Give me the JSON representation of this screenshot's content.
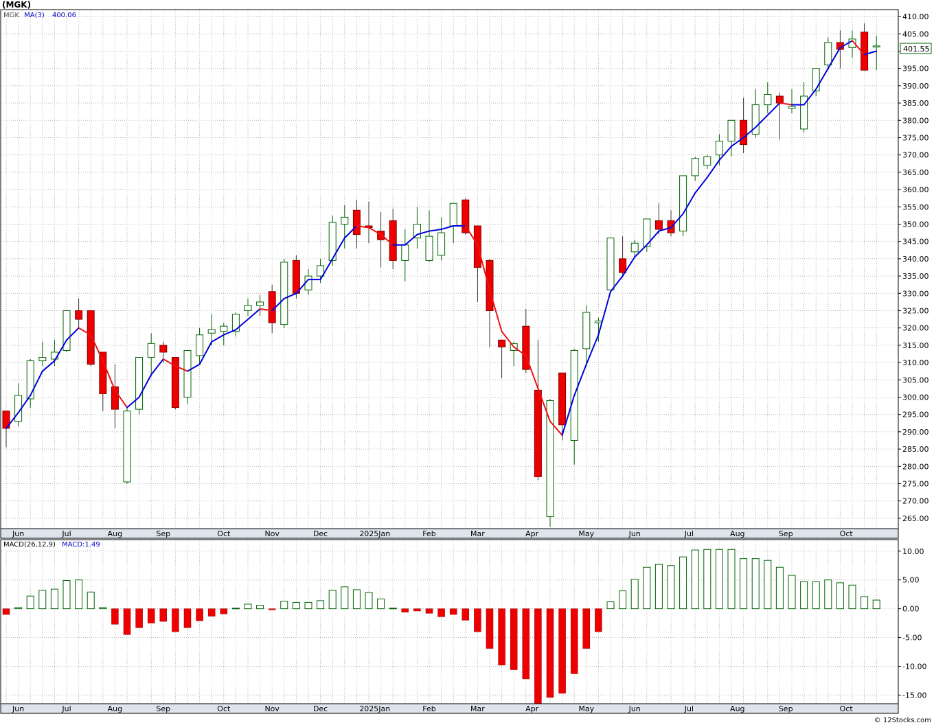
{
  "symbol_title": "(MGK)",
  "price_legend": {
    "symbol": "MGK",
    "ma_label": "MA(3)",
    "ma_value": "400.06"
  },
  "macd_legend": {
    "label": "MACD(26,12,9)",
    "value_label": "MACD:1.49"
  },
  "last_price_label": "401.55",
  "credit": "© 12Stocks.com",
  "colors": {
    "up": "#ffffff",
    "up_border": "#006400",
    "down": "#ee0000",
    "ma_up": "#0000dd",
    "ma_down": "#ee1111",
    "grid": "#bbbbbb",
    "axis_strip": "#dde4ec",
    "macd_pos_border": "#006400",
    "macd_neg": "#ee0000"
  },
  "chart_data": [
    {
      "type": "candlestick",
      "title": "(MGK)",
      "ylim": [
        262,
        412
      ],
      "y_ticks": [
        "410.00",
        "405.00",
        "400.00",
        "395.00",
        "390.00",
        "385.00",
        "380.00",
        "375.00",
        "370.00",
        "365.00",
        "360.00",
        "355.00",
        "350.00",
        "345.00",
        "340.00",
        "335.00",
        "330.00",
        "325.00",
        "320.00",
        "315.00",
        "310.00",
        "305.00",
        "300.00",
        "295.00",
        "290.00",
        "285.00",
        "280.00",
        "275.00",
        "270.00",
        "265.00"
      ],
      "x_month_labels": [
        "Jun",
        "Jul",
        "Aug",
        "Sep",
        "Oct",
        "Nov",
        "Dec",
        "2025Jan",
        "Feb",
        "Mar",
        "Apr",
        "May",
        "Jun",
        "Jul",
        "Aug",
        "Sep",
        "Oct"
      ],
      "x_month_index": [
        1,
        5,
        9,
        13,
        18,
        22,
        26,
        30.5,
        35,
        39,
        43.5,
        48,
        52,
        56.5,
        60.5,
        64.5,
        69.5
      ],
      "series": [
        {
          "name": "MGK",
          "ohlc": [
            [
              296,
              296,
              285.5,
              291
            ],
            [
              293,
              304,
              291.5,
              300.5
            ],
            [
              299.5,
              311,
              297,
              310.5
            ],
            [
              310.5,
              316,
              309,
              311.5
            ],
            [
              311,
              316.5,
              309,
              313
            ],
            [
              313.5,
              325,
              313,
              325
            ],
            [
              325,
              328.5,
              320,
              322.5
            ],
            [
              325,
              325,
              309,
              309.5
            ],
            [
              313,
              313,
              296,
              301
            ],
            [
              303,
              309.5,
              291,
              296.5
            ],
            [
              275.5,
              297,
              275,
              296
            ],
            [
              296.5,
              311.5,
              295,
              311.5
            ],
            [
              311.5,
              318.5,
              306,
              315.5
            ],
            [
              315,
              316,
              310,
              313
            ],
            [
              311.5,
              311.5,
              296.5,
              297
            ],
            [
              300,
              313.5,
              298,
              313.5
            ],
            [
              312,
              320,
              309.5,
              318
            ],
            [
              318.5,
              324,
              315,
              319.5
            ],
            [
              319,
              321.5,
              315,
              320.5
            ],
            [
              319,
              324.5,
              317.5,
              324
            ],
            [
              325,
              328.5,
              323.5,
              326.5
            ],
            [
              326.5,
              329.5,
              323.5,
              327.5
            ],
            [
              330.5,
              332.5,
              318.5,
              321.5
            ],
            [
              321,
              340,
              320,
              339
            ],
            [
              339.5,
              341,
              328.5,
              330
            ],
            [
              331,
              337,
              329.5,
              335
            ],
            [
              335,
              340,
              333,
              338
            ],
            [
              339.5,
              352.5,
              338,
              350.5
            ],
            [
              350,
              355.5,
              343,
              352
            ],
            [
              354,
              357,
              343,
              347
            ],
            [
              349.5,
              356.5,
              344.5,
              349
            ],
            [
              348,
              353.5,
              337.5,
              345.5
            ],
            [
              351,
              354.5,
              337,
              339.5
            ],
            [
              339.5,
              348.5,
              333.5,
              344
            ],
            [
              346,
              355,
              343,
              350
            ],
            [
              339.5,
              354,
              339,
              346.5
            ],
            [
              341,
              352,
              339.5,
              347.5
            ],
            [
              349.5,
              356,
              344.5,
              356
            ],
            [
              357,
              357.5,
              347,
              347.5
            ],
            [
              349.5,
              349.5,
              327.5,
              337.5
            ],
            [
              339.5,
              340,
              314.5,
              325
            ],
            [
              316.5,
              316.5,
              305.5,
              314.5
            ],
            [
              313.5,
              316,
              309,
              315.5
            ],
            [
              320.5,
              325.5,
              307,
              308
            ],
            [
              302,
              316.5,
              276,
              277
            ],
            [
              265.5,
              299.5,
              262.5,
              299
            ],
            [
              307,
              307,
              287.5,
              292
            ],
            [
              287.5,
              314,
              280.5,
              313.5
            ],
            [
              314,
              326.5,
              309,
              324.5
            ],
            [
              321.5,
              323,
              316,
              322
            ],
            [
              331,
              345.5,
              331,
              346
            ],
            [
              340,
              346.5,
              335,
              336
            ],
            [
              342,
              345.5,
              340.5,
              344.5
            ],
            [
              343.5,
              351.5,
              342,
              351.5
            ],
            [
              351,
              356,
              347,
              348.5
            ],
            [
              351,
              354,
              346.5,
              347.5
            ],
            [
              348,
              363.5,
              346.5,
              364
            ],
            [
              364,
              369.5,
              362.5,
              369
            ],
            [
              367,
              370,
              366,
              369.5
            ],
            [
              370,
              376,
              367,
              374
            ],
            [
              374,
              379.5,
              369.5,
              380
            ],
            [
              380,
              386.5,
              370.5,
              373
            ],
            [
              376,
              389,
              375,
              384.5
            ],
            [
              384.5,
              391,
              382,
              387.5
            ],
            [
              387,
              388,
              374.5,
              385
            ],
            [
              383.5,
              389,
              382,
              384
            ],
            [
              377.5,
              391,
              376.5,
              387
            ],
            [
              388.5,
              395,
              387,
              395
            ],
            [
              396,
              404,
              394.5,
              402.5
            ],
            [
              402.5,
              406,
              395,
              400.5
            ],
            [
              401,
              406,
              398,
              403.5
            ],
            [
              405.5,
              408,
              394.5,
              394.5
            ],
            [
              401.5,
              404.5,
              394.5,
              401.5
            ]
          ]
        },
        {
          "name": "MA(3)",
          "values": [
            291,
            295.5,
            300.5,
            307.5,
            310.5,
            316.5,
            320,
            318,
            310.5,
            302,
            297,
            300,
            306.5,
            311,
            309,
            307.5,
            309.5,
            316,
            318,
            319.5,
            322.5,
            325.5,
            325,
            328.5,
            330,
            334,
            334,
            340,
            346,
            349.5,
            349,
            347,
            344,
            344,
            347,
            348,
            348.5,
            349.5,
            349.5,
            344,
            331,
            319,
            314.5,
            312,
            302.5,
            293,
            289,
            300.5,
            309.5,
            318,
            330.5,
            335,
            340.5,
            344,
            348,
            349,
            353,
            359,
            363.5,
            368.5,
            372.5,
            375,
            378,
            381.5,
            385,
            384.5,
            384.5,
            389,
            395,
            401,
            403,
            399,
            400
          ]
        }
      ]
    },
    {
      "type": "bar",
      "title": "MACD(26,12,9)",
      "ylim": [
        -16.5,
        12
      ],
      "y_ticks": [
        "10.00",
        "5.00",
        "0.00",
        "-5.00",
        "-10.00",
        "-15.00"
      ],
      "series": [
        {
          "name": "MACD",
          "values": [
            -1,
            0.2,
            2.2,
            3.2,
            3.4,
            4.9,
            5,
            2.9,
            0.2,
            -2.7,
            -4.5,
            -3.3,
            -2.5,
            -2.2,
            -4,
            -3.3,
            -2.1,
            -1.3,
            -0.9,
            0.1,
            0.8,
            0.6,
            -0.2,
            1.3,
            1.1,
            1.1,
            1.4,
            3.2,
            3.8,
            3.3,
            2.8,
            1.7,
            0.1,
            -0.6,
            -0.4,
            -0.8,
            -1.4,
            -1,
            -2,
            -4,
            -6.9,
            -9.8,
            -10.6,
            -12.2,
            -17,
            -15.4,
            -14.7,
            -11.3,
            -6.9,
            -4,
            1.2,
            3.1,
            5.1,
            7.2,
            7.7,
            7.5,
            9,
            10.2,
            10.3,
            10.3,
            10.3,
            8.7,
            8.7,
            8.4,
            7.2,
            5.8,
            4.7,
            4.7,
            5,
            4.5,
            4.1,
            2.1,
            1.5
          ]
        }
      ]
    }
  ]
}
